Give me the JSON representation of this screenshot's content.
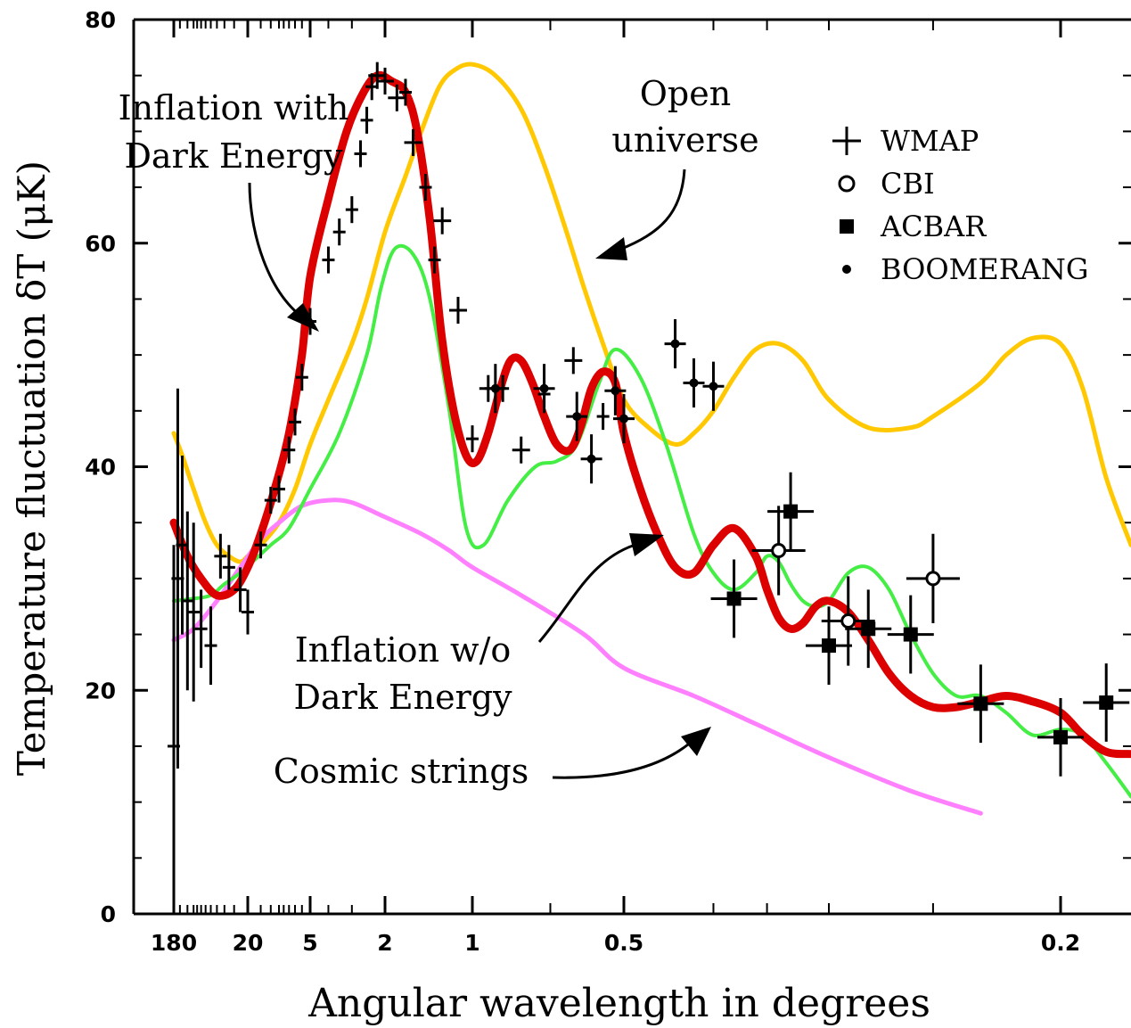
{
  "chart_data": {
    "type": "line",
    "xlabel": "Angular wavelength in degrees",
    "ylabel": "Temperature fluctuation δT (μK)",
    "ylim": [
      0,
      80
    ],
    "y_ticks": [
      "0",
      "20",
      "40",
      "60",
      "80"
    ],
    "x_tick_labels": [
      "180",
      "20",
      "5",
      "2",
      "1",
      "0.5",
      "0.2"
    ],
    "grid": false,
    "legend_position": "top-right",
    "legend": [
      {
        "marker": "plus",
        "label": "WMAP"
      },
      {
        "marker": "open-circle",
        "label": "CBI"
      },
      {
        "marker": "filled-square",
        "label": "ACBAR"
      },
      {
        "marker": "dot",
        "label": "BOOMERANG"
      }
    ],
    "annotations": {
      "inflation_de": [
        "Inflation with",
        "Dark Energy"
      ],
      "open": [
        "Open",
        "universe"
      ],
      "inflation_nde": [
        "Inflation w/o",
        "Dark Energy"
      ],
      "strings": "Cosmic strings"
    },
    "series": [
      {
        "color": "#ffc800",
        "x": [
          180,
          140,
          100,
          70,
          50,
          35,
          25,
          20,
          15,
          10,
          7,
          5,
          4,
          3,
          2.5,
          2,
          1.7,
          1.5,
          1.3,
          1.15,
          1.0,
          0.9,
          0.8,
          0.72,
          0.65,
          0.6,
          0.55,
          0.5,
          0.47,
          0.44,
          0.42,
          0.4,
          0.38,
          0.36,
          0.34,
          0.32,
          0.3,
          0.28,
          0.26,
          0.25,
          0.23,
          0.22,
          0.21,
          0.2,
          0.19,
          0.18,
          0.17
        ],
        "y": [
          43,
          41,
          38,
          35,
          33,
          32,
          31.5,
          32,
          33,
          35,
          38,
          42,
          46,
          51,
          55,
          61,
          66,
          70,
          74,
          75.5,
          76,
          75,
          72,
          67,
          61,
          56,
          51,
          46,
          43.5,
          42,
          43,
          45,
          48,
          50.5,
          51,
          49.5,
          46,
          43.5,
          43.5,
          44.5,
          47.5,
          50,
          51.5,
          51,
          47,
          39,
          33
        ]
      },
      {
        "color": "#ff80ff",
        "x": [
          180,
          100,
          50,
          25,
          15,
          10,
          6,
          4,
          3,
          2,
          1.5,
          1.2,
          1.0,
          0.8,
          0.6,
          0.5,
          0.42,
          0.36,
          0.3,
          0.26,
          0.23
        ],
        "y": [
          24.5,
          25.5,
          28,
          31,
          33.5,
          35,
          36.5,
          37,
          36.8,
          35.5,
          34,
          32.5,
          31,
          28.5,
          25,
          22,
          19.5,
          17,
          14,
          11,
          9
        ]
      },
      {
        "color": "#44ee44",
        "x": [
          180,
          100,
          60,
          40,
          25,
          18,
          12,
          8,
          5,
          3.5,
          2.5,
          2.1,
          1.85,
          1.6,
          1.4,
          1.2,
          1.05,
          0.95,
          0.85,
          0.75,
          0.68,
          0.62,
          0.56,
          0.52,
          0.48,
          0.45,
          0.42,
          0.4,
          0.38,
          0.36,
          0.35,
          0.34,
          0.33,
          0.32,
          0.31,
          0.3,
          0.29,
          0.28,
          0.27,
          0.26,
          0.25,
          0.24,
          0.23,
          0.22,
          0.21,
          0.2,
          0.19,
          0.18,
          0.17
        ],
        "y": [
          28,
          28.2,
          28.5,
          29.5,
          30.5,
          31.5,
          33,
          34.5,
          38,
          43,
          50,
          56,
          59.5,
          59,
          55,
          45,
          34.5,
          33,
          37,
          40,
          40.5,
          42,
          47.5,
          50.5,
          48,
          42,
          34,
          30.5,
          29,
          30.5,
          32,
          31.5,
          29.5,
          28,
          27.5,
          28,
          30.5,
          31,
          29,
          25,
          21.5,
          19.5,
          19.5,
          18,
          16,
          16.5,
          16,
          13.5,
          10.5
        ]
      },
      {
        "color": "#dd0000",
        "x": [
          180,
          120,
          80,
          50,
          30,
          20,
          15,
          11,
          8,
          6,
          5,
          4,
          3.2,
          2.6,
          2.2,
          1.9,
          1.7,
          1.55,
          1.4,
          1.28,
          1.16,
          1.05,
          0.98,
          0.93,
          0.88,
          0.84,
          0.8,
          0.76,
          0.72,
          0.68,
          0.64,
          0.61,
          0.58,
          0.55,
          0.52,
          0.5,
          0.48,
          0.46,
          0.44,
          0.42,
          0.4,
          0.38,
          0.36,
          0.35,
          0.34,
          0.33,
          0.32,
          0.31,
          0.3,
          0.29,
          0.28,
          0.27,
          0.26,
          0.25,
          0.24,
          0.23,
          0.22,
          0.21,
          0.2,
          0.19,
          0.18,
          0.17
        ],
        "y": [
          35,
          32,
          30,
          28.5,
          29,
          31,
          34,
          38,
          43,
          50,
          57,
          64,
          70,
          73.5,
          75,
          74.5,
          73.5,
          70,
          62,
          52,
          45,
          41,
          40.5,
          43,
          47,
          49.5,
          49.5,
          47.5,
          44.5,
          42,
          41.5,
          43.5,
          47,
          48.5,
          47.5,
          43,
          38,
          34,
          31,
          30.5,
          33,
          34.5,
          32,
          29,
          26.5,
          25.5,
          26,
          27.5,
          28,
          27,
          24.5,
          21.5,
          19.5,
          18.5,
          18.5,
          19,
          19.5,
          19,
          18,
          16,
          14.5,
          14.3
        ]
      }
    ],
    "data_points": {
      "wmap_big": [
        [
          2.2,
          75
        ],
        [
          2.0,
          74.5
        ],
        [
          1.82,
          73
        ],
        [
          1.6,
          69
        ],
        [
          1.27,
          62
        ],
        [
          1.12,
          54
        ],
        [
          0.93,
          47
        ],
        [
          0.8,
          41.5
        ],
        [
          0.63,
          49.5
        ]
      ],
      "wmap_small": [
        [
          180,
          15
        ],
        [
          160,
          30
        ],
        [
          140,
          33
        ],
        [
          120,
          28
        ],
        [
          100,
          27
        ],
        [
          80,
          25.5
        ],
        [
          60,
          24
        ],
        [
          45,
          32
        ],
        [
          35,
          31
        ],
        [
          25,
          29
        ],
        [
          20,
          27
        ],
        [
          15,
          33
        ],
        [
          12,
          37
        ],
        [
          10,
          38
        ],
        [
          8,
          41.5
        ],
        [
          7,
          44
        ],
        [
          6,
          48
        ],
        [
          5,
          53
        ],
        [
          4,
          58.5
        ],
        [
          3.5,
          61
        ],
        [
          3,
          63
        ],
        [
          2.7,
          68
        ],
        [
          2.5,
          71
        ],
        [
          2.35,
          74
        ],
        [
          1.7,
          73.5
        ],
        [
          1.45,
          65
        ],
        [
          1.35,
          58.5
        ],
        [
          1.0,
          42.5
        ],
        [
          0.87,
          47
        ],
        [
          0.72,
          46.5
        ],
        [
          0.55,
          44.5
        ]
      ],
      "boomerang": [
        [
          0.9,
          47
        ],
        [
          0.72,
          47
        ],
        [
          0.62,
          44.5
        ],
        [
          0.58,
          40.7
        ],
        [
          0.52,
          46.8
        ],
        [
          0.5,
          44.3
        ],
        [
          0.44,
          51
        ],
        [
          0.42,
          47.5
        ],
        [
          0.4,
          47.2
        ]
      ],
      "acbar": [
        [
          0.38,
          28.2
        ],
        [
          0.33,
          36
        ],
        [
          0.3,
          24
        ],
        [
          0.28,
          25.5
        ],
        [
          0.26,
          25
        ],
        [
          0.23,
          18.8
        ],
        [
          0.2,
          15.8
        ],
        [
          0.18,
          18.9
        ]
      ],
      "cbi": [
        [
          0.34,
          32.5
        ],
        [
          0.29,
          26.2
        ],
        [
          0.25,
          30
        ]
      ]
    }
  }
}
